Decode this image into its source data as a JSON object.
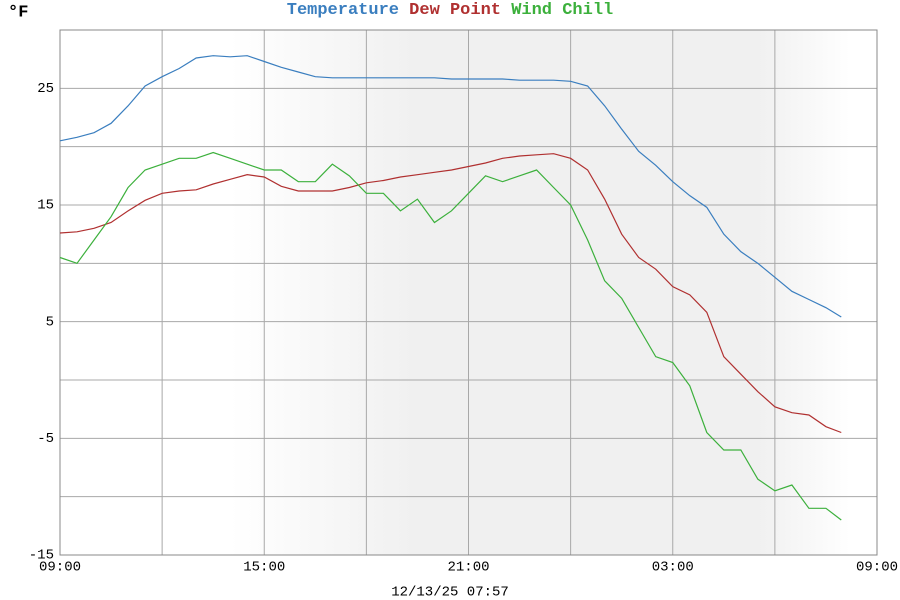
{
  "chart_data": {
    "type": "line",
    "y_label": "°F",
    "footer": "12/13/25 07:57",
    "x": [
      0,
      0.5,
      1,
      1.5,
      2,
      2.5,
      3,
      3.5,
      4,
      4.5,
      5,
      5.5,
      6,
      6.5,
      7,
      7.5,
      8,
      8.5,
      9,
      9.5,
      10,
      10.5,
      11,
      11.5,
      12,
      12.5,
      13,
      13.5,
      14,
      14.5,
      15,
      15.5,
      16,
      16.5,
      17,
      17.5,
      18,
      18.5,
      19,
      19.5,
      20,
      20.5,
      21,
      21.5,
      22,
      22.5,
      22.95
    ],
    "series": [
      {
        "name": "Temperature",
        "color": "#3a7ebf",
        "values": [
          20.5,
          20.8,
          21.2,
          22,
          23.5,
          25.2,
          26,
          26.7,
          27.6,
          27.8,
          27.7,
          27.8,
          27.3,
          26.8,
          26.4,
          26,
          25.9,
          25.9,
          25.9,
          25.9,
          25.9,
          25.9,
          25.9,
          25.8,
          25.8,
          25.8,
          25.8,
          25.7,
          25.7,
          25.7,
          25.6,
          25.2,
          23.5,
          21.5,
          19.6,
          18.4,
          17,
          15.8,
          14.8,
          12.5,
          11,
          10,
          8.8,
          7.6,
          6.9,
          6.2,
          5.4
        ]
      },
      {
        "name": "Dew Point",
        "color": "#b03030",
        "values": [
          12.6,
          12.7,
          13,
          13.5,
          14.5,
          15.4,
          16,
          16.2,
          16.3,
          16.8,
          17.2,
          17.6,
          17.4,
          16.6,
          16.2,
          16.2,
          16.2,
          16.5,
          16.9,
          17.1,
          17.4,
          17.6,
          17.8,
          18,
          18.3,
          18.6,
          19,
          19.2,
          19.3,
          19.4,
          19,
          18,
          15.5,
          12.5,
          10.5,
          9.5,
          8,
          7.3,
          5.8,
          2,
          0.5,
          -1,
          -2.3,
          -2.8,
          -3,
          -4,
          -4.5
        ]
      },
      {
        "name": "Wind Chill",
        "color": "#3cb03c",
        "values": [
          10.5,
          10,
          12,
          14,
          16.5,
          18,
          18.5,
          19,
          19,
          19.5,
          19,
          18.5,
          18,
          18,
          17,
          17,
          18.5,
          17.5,
          16,
          16,
          14.5,
          15.5,
          13.5,
          14.5,
          16,
          17.5,
          17,
          17.5,
          18,
          16.5,
          15,
          12,
          8.5,
          7,
          4.5,
          2,
          1.5,
          -0.5,
          -4.5,
          -6,
          -6,
          -8.5,
          -9.5,
          -9,
          -11,
          -11,
          -12
        ]
      }
    ],
    "xlim": [
      0,
      24
    ],
    "xticks": [
      {
        "value": 0,
        "label": "09:00"
      },
      {
        "value": 3,
        "label": null
      },
      {
        "value": 6,
        "label": "15:00"
      },
      {
        "value": 9,
        "label": null
      },
      {
        "value": 12,
        "label": "21:00"
      },
      {
        "value": 15,
        "label": null
      },
      {
        "value": 18,
        "label": "03:00"
      },
      {
        "value": 21,
        "label": null
      },
      {
        "value": 24,
        "label": "09:00"
      }
    ],
    "ylim": [
      -15,
      30
    ],
    "yticks": [
      -15,
      {
        "value": -10,
        "label": null
      },
      -5,
      {
        "value": 0,
        "label": null
      },
      5,
      {
        "value": 10,
        "label": null
      },
      15,
      {
        "value": 20,
        "label": null
      },
      25,
      {
        "value": 30,
        "label": null
      }
    ],
    "grid": true
  }
}
